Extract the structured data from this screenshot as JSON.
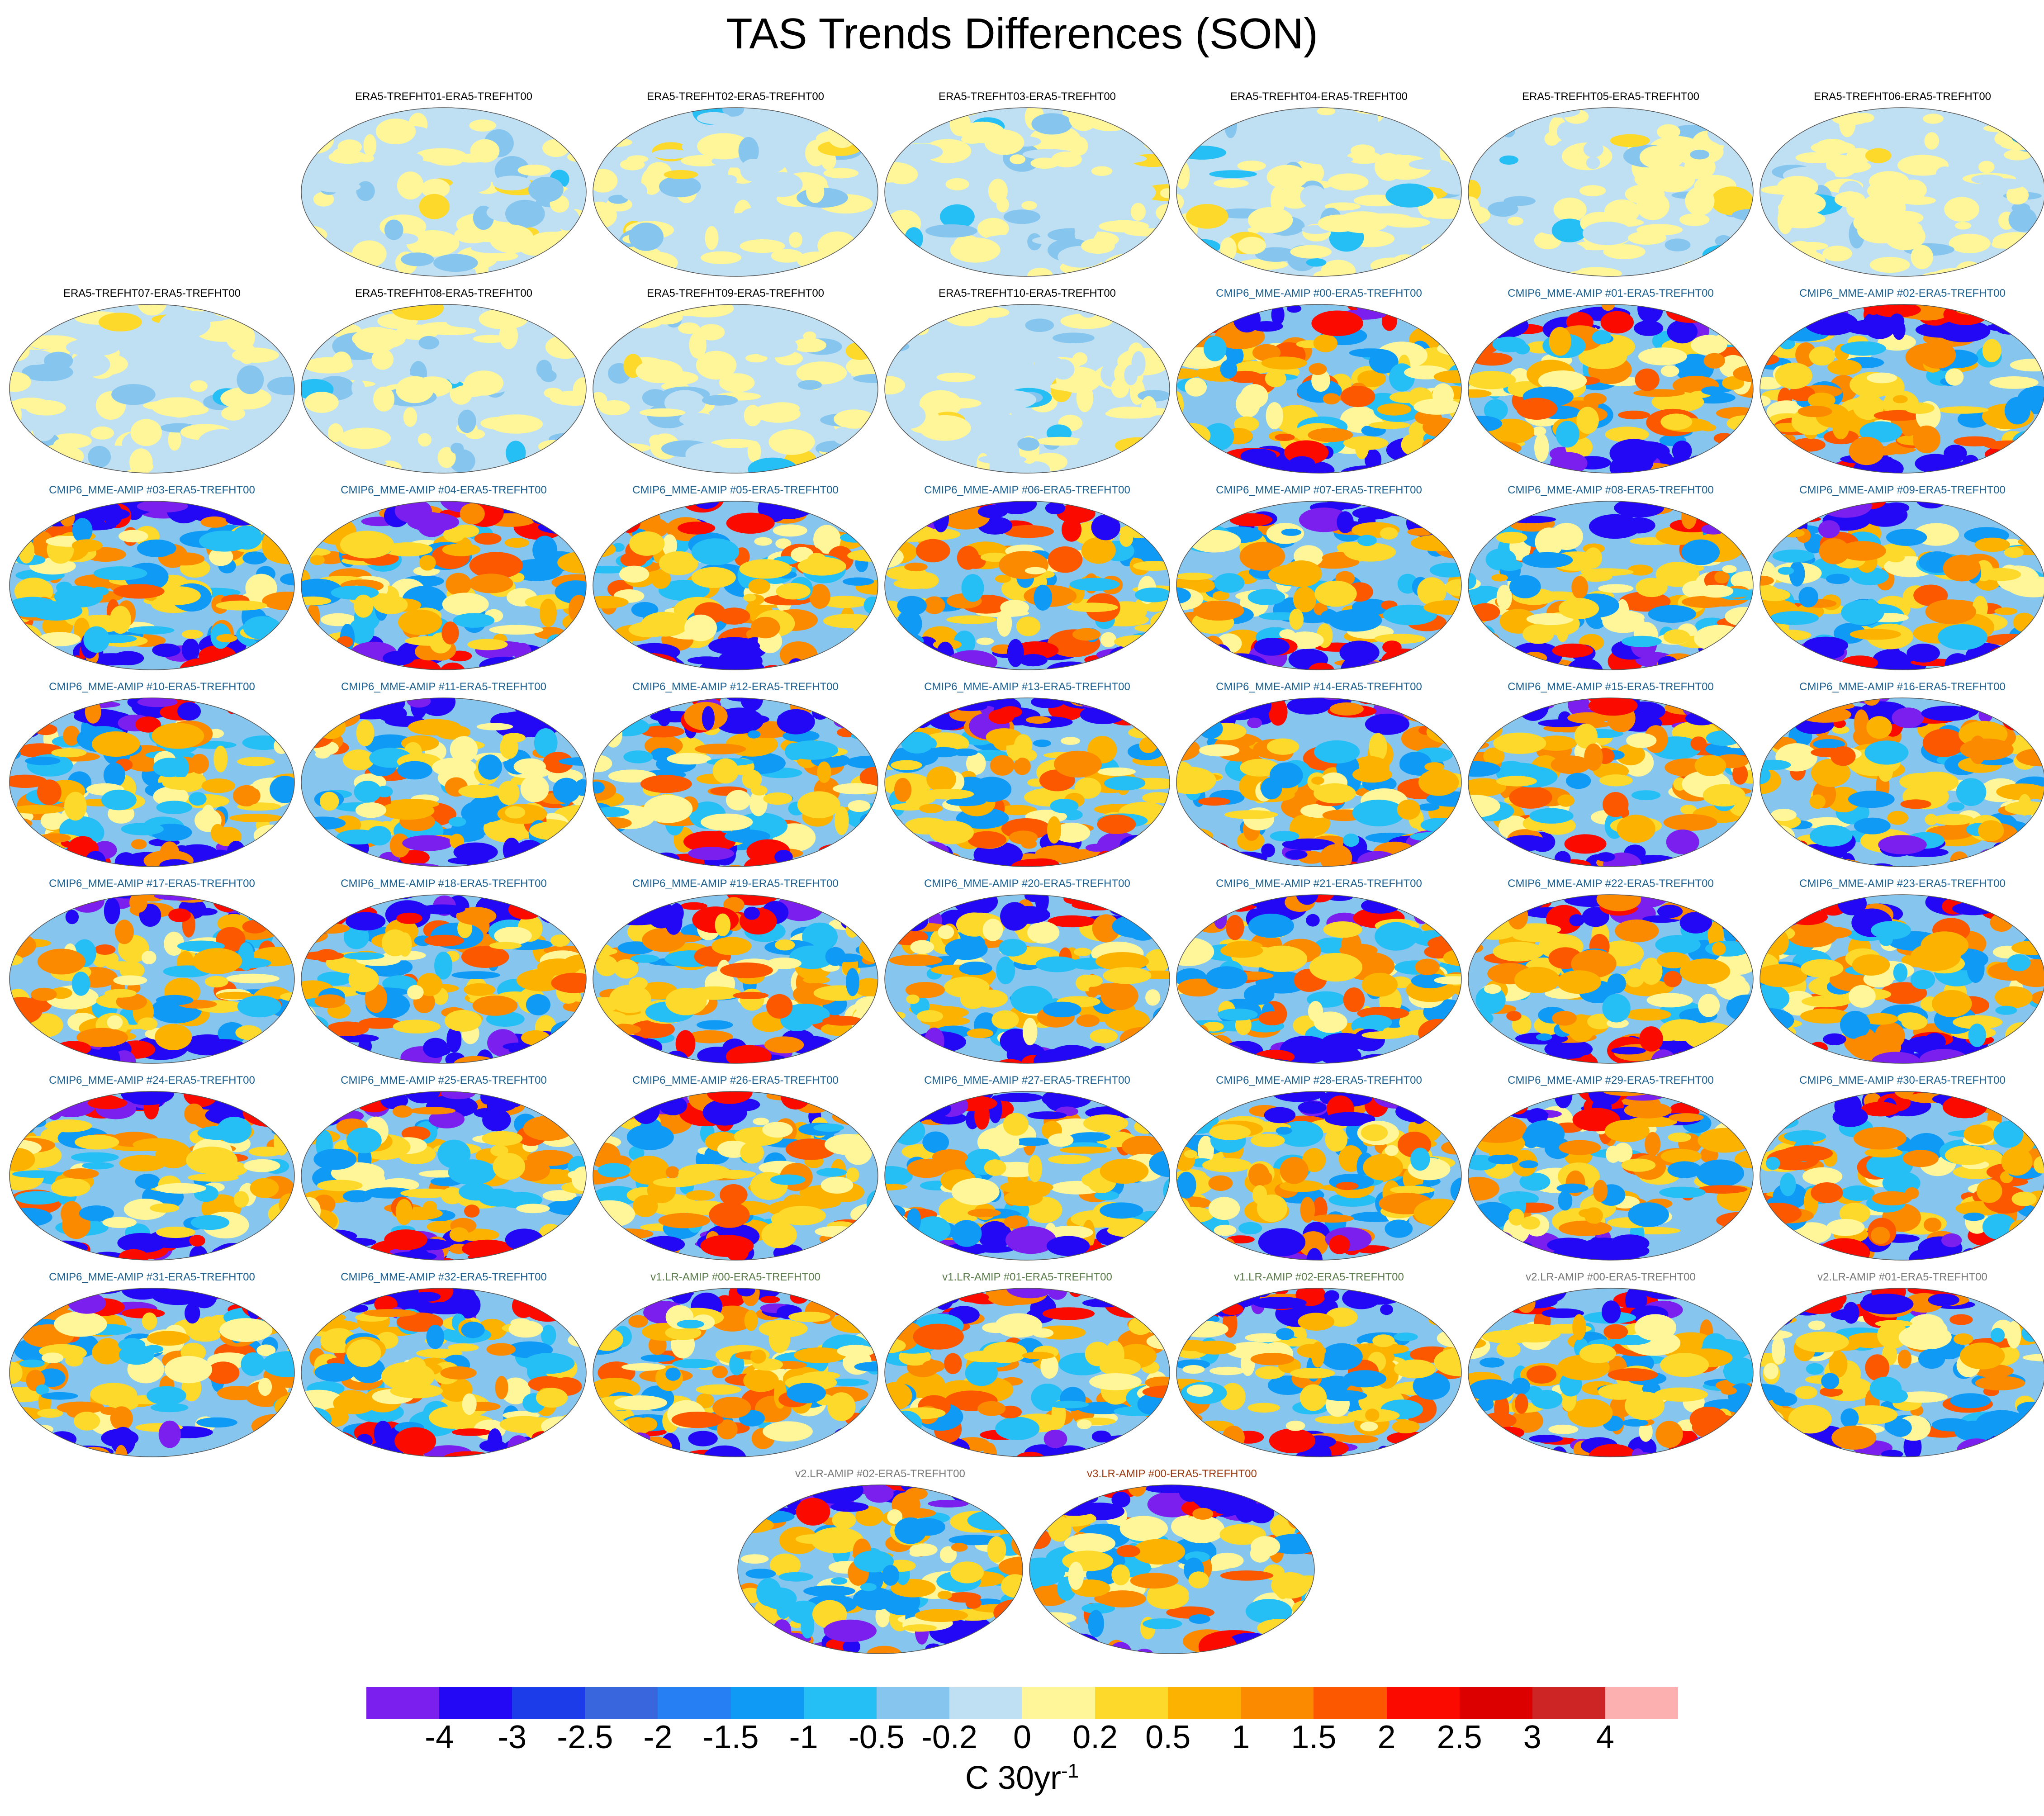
{
  "chart_data": {
    "type": "heatmap",
    "title": "TAS Trends Differences (SON)",
    "colorbar": {
      "units_base": "C 30yr",
      "units_exp": "-1",
      "levels": [
        "-4",
        "-3",
        "-2.5",
        "-2",
        "-1.5",
        "-1",
        "-0.5",
        "-0.2",
        "0",
        "0.2",
        "0.5",
        "1",
        "1.5",
        "2",
        "2.5",
        "3",
        "4"
      ],
      "colors": [
        "#7b1fee",
        "#2308f5",
        "#1c3cea",
        "#3a66dd",
        "#2680f3",
        "#0f9af6",
        "#26bff5",
        "#86c6ee",
        "#bfe0f3",
        "#fff69a",
        "#fdd92c",
        "#fcb200",
        "#fb8a00",
        "#fb5800",
        "#fb0a00",
        "#dc0000",
        "#cd2525",
        "#fcb0b0"
      ]
    },
    "panels": [
      {
        "title": "ERA5-TREFHT01-ERA5-TREFHT00",
        "group": "era5"
      },
      {
        "title": "ERA5-TREFHT02-ERA5-TREFHT00",
        "group": "era5"
      },
      {
        "title": "ERA5-TREFHT03-ERA5-TREFHT00",
        "group": "era5"
      },
      {
        "title": "ERA5-TREFHT04-ERA5-TREFHT00",
        "group": "era5"
      },
      {
        "title": "ERA5-TREFHT05-ERA5-TREFHT00",
        "group": "era5"
      },
      {
        "title": "ERA5-TREFHT06-ERA5-TREFHT00",
        "group": "era5"
      },
      {
        "title": "ERA5-TREFHT07-ERA5-TREFHT00",
        "group": "era5"
      },
      {
        "title": "ERA5-TREFHT08-ERA5-TREFHT00",
        "group": "era5"
      },
      {
        "title": "ERA5-TREFHT09-ERA5-TREFHT00",
        "group": "era5"
      },
      {
        "title": "ERA5-TREFHT10-ERA5-TREFHT00",
        "group": "era5"
      },
      {
        "title": "CMIP6_MME-AMIP  #00-ERA5-TREFHT00",
        "group": "cmip6"
      },
      {
        "title": "CMIP6_MME-AMIP  #01-ERA5-TREFHT00",
        "group": "cmip6"
      },
      {
        "title": "CMIP6_MME-AMIP  #02-ERA5-TREFHT00",
        "group": "cmip6"
      },
      {
        "title": "CMIP6_MME-AMIP  #03-ERA5-TREFHT00",
        "group": "cmip6"
      },
      {
        "title": "CMIP6_MME-AMIP  #04-ERA5-TREFHT00",
        "group": "cmip6"
      },
      {
        "title": "CMIP6_MME-AMIP  #05-ERA5-TREFHT00",
        "group": "cmip6"
      },
      {
        "title": "CMIP6_MME-AMIP  #06-ERA5-TREFHT00",
        "group": "cmip6"
      },
      {
        "title": "CMIP6_MME-AMIP  #07-ERA5-TREFHT00",
        "group": "cmip6"
      },
      {
        "title": "CMIP6_MME-AMIP  #08-ERA5-TREFHT00",
        "group": "cmip6"
      },
      {
        "title": "CMIP6_MME-AMIP  #09-ERA5-TREFHT00",
        "group": "cmip6"
      },
      {
        "title": "CMIP6_MME-AMIP  #10-ERA5-TREFHT00",
        "group": "cmip6"
      },
      {
        "title": "CMIP6_MME-AMIP  #11-ERA5-TREFHT00",
        "group": "cmip6"
      },
      {
        "title": "CMIP6_MME-AMIP  #12-ERA5-TREFHT00",
        "group": "cmip6"
      },
      {
        "title": "CMIP6_MME-AMIP  #13-ERA5-TREFHT00",
        "group": "cmip6"
      },
      {
        "title": "CMIP6_MME-AMIP  #14-ERA5-TREFHT00",
        "group": "cmip6"
      },
      {
        "title": "CMIP6_MME-AMIP  #15-ERA5-TREFHT00",
        "group": "cmip6"
      },
      {
        "title": "CMIP6_MME-AMIP  #16-ERA5-TREFHT00",
        "group": "cmip6"
      },
      {
        "title": "CMIP6_MME-AMIP  #17-ERA5-TREFHT00",
        "group": "cmip6"
      },
      {
        "title": "CMIP6_MME-AMIP  #18-ERA5-TREFHT00",
        "group": "cmip6"
      },
      {
        "title": "CMIP6_MME-AMIP  #19-ERA5-TREFHT00",
        "group": "cmip6"
      },
      {
        "title": "CMIP6_MME-AMIP  #20-ERA5-TREFHT00",
        "group": "cmip6"
      },
      {
        "title": "CMIP6_MME-AMIP  #21-ERA5-TREFHT00",
        "group": "cmip6"
      },
      {
        "title": "CMIP6_MME-AMIP  #22-ERA5-TREFHT00",
        "group": "cmip6"
      },
      {
        "title": "CMIP6_MME-AMIP  #23-ERA5-TREFHT00",
        "group": "cmip6"
      },
      {
        "title": "CMIP6_MME-AMIP  #24-ERA5-TREFHT00",
        "group": "cmip6"
      },
      {
        "title": "CMIP6_MME-AMIP  #25-ERA5-TREFHT00",
        "group": "cmip6"
      },
      {
        "title": "CMIP6_MME-AMIP  #26-ERA5-TREFHT00",
        "group": "cmip6"
      },
      {
        "title": "CMIP6_MME-AMIP  #27-ERA5-TREFHT00",
        "group": "cmip6"
      },
      {
        "title": "CMIP6_MME-AMIP  #28-ERA5-TREFHT00",
        "group": "cmip6"
      },
      {
        "title": "CMIP6_MME-AMIP  #29-ERA5-TREFHT00",
        "group": "cmip6"
      },
      {
        "title": "CMIP6_MME-AMIP  #30-ERA5-TREFHT00",
        "group": "cmip6"
      },
      {
        "title": "CMIP6_MME-AMIP  #31-ERA5-TREFHT00",
        "group": "cmip6"
      },
      {
        "title": "CMIP6_MME-AMIP  #32-ERA5-TREFHT00",
        "group": "cmip6"
      },
      {
        "title": "v1.LR-AMIP  #00-ERA5-TREFHT00",
        "group": "v1"
      },
      {
        "title": "v1.LR-AMIP  #01-ERA5-TREFHT00",
        "group": "v1"
      },
      {
        "title": "v1.LR-AMIP  #02-ERA5-TREFHT00",
        "group": "v1"
      },
      {
        "title": "v2.LR-AMIP  #00-ERA5-TREFHT00",
        "group": "v2"
      },
      {
        "title": "v2.LR-AMIP  #01-ERA5-TREFHT00",
        "group": "v2"
      },
      {
        "title": "v2.LR-AMIP  #02-ERA5-TREFHT00",
        "group": "v2"
      },
      {
        "title": "v3.LR-AMIP  #00-ERA5-TREFHT00",
        "group": "v3"
      }
    ],
    "group_title_colors": {
      "era5": "#000000",
      "cmip6": "#1a5f8f",
      "v1": "#5a7a4a",
      "v2": "#777777",
      "v3": "#9a3a10"
    }
  }
}
